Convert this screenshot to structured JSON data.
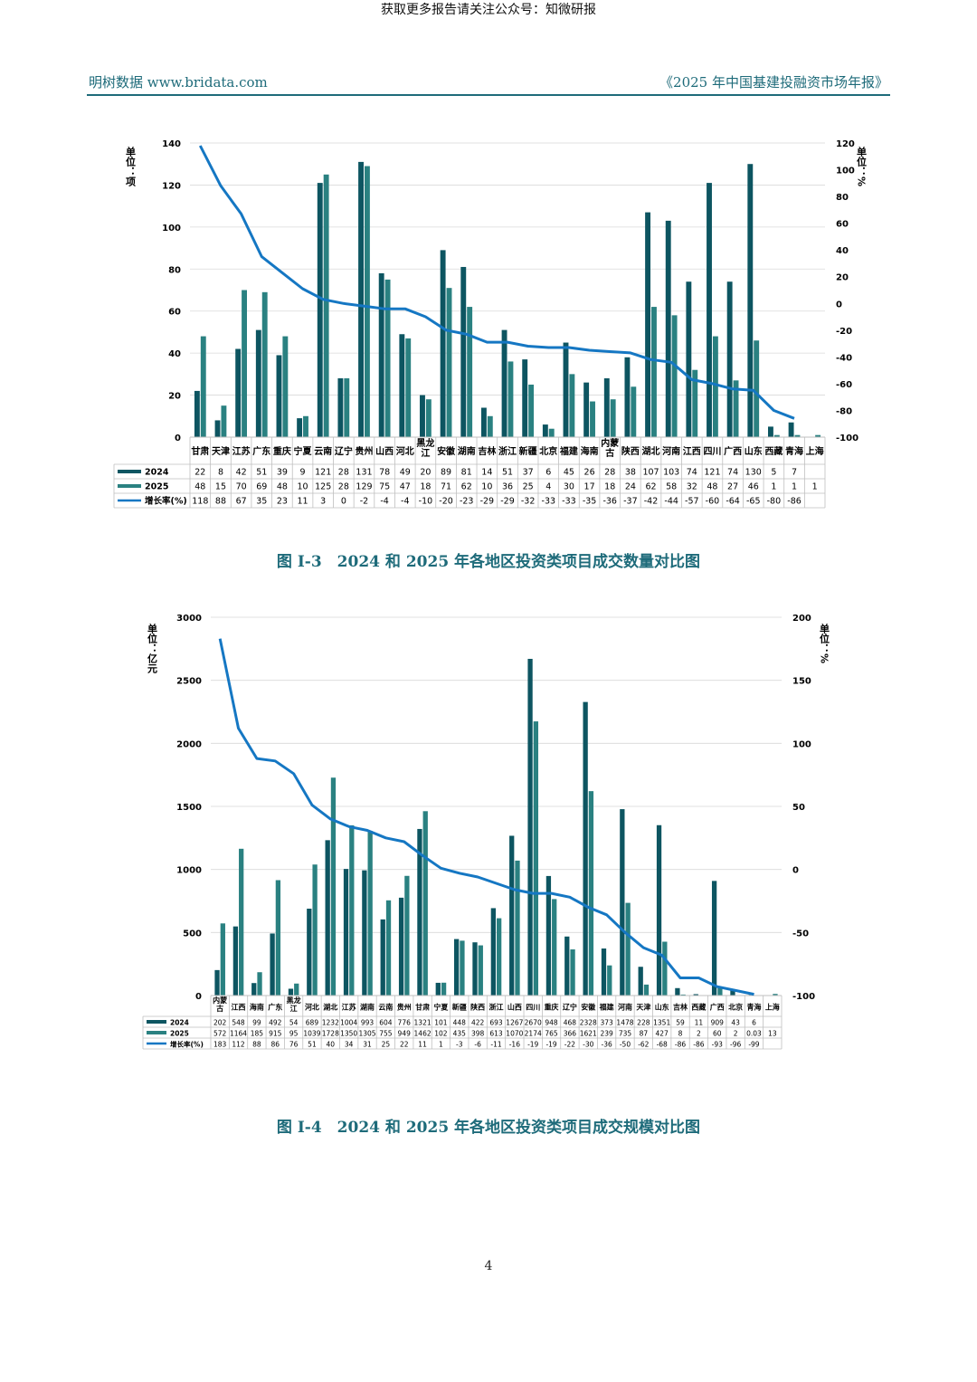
{
  "header": {
    "banner": "获取更多报告请关注公众号：知微研报",
    "left": "明树数据 www.bridata.com",
    "right": "《2025 年中国基建投融资市场年报》"
  },
  "colors": {
    "y2024": "#0d5561",
    "y2025": "#2a8181",
    "growth": "#1577c3",
    "text": "#1e6b7a"
  },
  "chart_data": [
    {
      "type": "bar",
      "title": "",
      "ylabel": "单位：项",
      "y2label": "单位：%",
      "ylim": [
        0,
        140
      ],
      "y2lim": [
        -100,
        120
      ],
      "legend_labels": [
        "2024",
        "2025",
        "增长率(%)"
      ],
      "categories": [
        "甘肃",
        "天津",
        "江苏",
        "广东",
        "重庆",
        "宁夏",
        "云南",
        "辽宁",
        "贵州",
        "山西",
        "河北",
        "黑龙江",
        "安徽",
        "湖南",
        "吉林",
        "浙江",
        "新疆",
        "北京",
        "福建",
        "海南",
        "内蒙古",
        "陕西",
        "湖北",
        "河南",
        "江西",
        "四川",
        "广西",
        "山东",
        "西藏",
        "青海",
        "上海"
      ],
      "series": [
        {
          "name": "2024",
          "values": [
            22,
            8,
            42,
            51,
            39,
            9,
            121,
            28,
            131,
            78,
            49,
            20,
            89,
            81,
            14,
            51,
            37,
            6,
            45,
            26,
            28,
            38,
            107,
            103,
            74,
            121,
            74,
            130,
            5,
            7,
            ""
          ]
        },
        {
          "name": "2025",
          "values": [
            48,
            15,
            70,
            69,
            48,
            10,
            125,
            28,
            129,
            75,
            47,
            18,
            71,
            62,
            10,
            36,
            25,
            4,
            30,
            17,
            18,
            24,
            62,
            58,
            32,
            48,
            27,
            46,
            1,
            1,
            1
          ]
        },
        {
          "name": "增长率(%)",
          "values": [
            118,
            88,
            67,
            35,
            23,
            11,
            3,
            0,
            -2,
            -4,
            -4,
            -10,
            -20,
            -23,
            -29,
            -29,
            -32,
            -33,
            -33,
            -35,
            -36,
            -37,
            -42,
            -44,
            -57,
            -60,
            -64,
            -65,
            -80,
            -86,
            ""
          ]
        }
      ],
      "caption": "图 I-3　2024 和 2025 年各地区投资类项目成交数量对比图"
    },
    {
      "type": "bar",
      "title": "",
      "ylabel": "单位：亿元",
      "y2label": "单位：%",
      "ylim": [
        0,
        3000
      ],
      "y2lim": [
        -100,
        200
      ],
      "legend_labels": [
        "2024",
        "2025",
        "增长率(%)"
      ],
      "categories": [
        "内蒙古",
        "江西",
        "海南",
        "广东",
        "黑龙江",
        "河北",
        "湖北",
        "江苏",
        "湖南",
        "云南",
        "贵州",
        "甘肃",
        "宁夏",
        "新疆",
        "陕西",
        "浙江",
        "山西",
        "四川",
        "重庆",
        "辽宁",
        "安徽",
        "福建",
        "河南",
        "天津",
        "山东",
        "吉林",
        "西藏",
        "广西",
        "北京",
        "青海",
        "上海"
      ],
      "series": [
        {
          "name": "2024",
          "values": [
            202,
            548,
            99,
            492,
            54,
            689,
            1232,
            1004,
            993,
            604,
            776,
            1321,
            101,
            448,
            422,
            693,
            1267,
            2670,
            948,
            468,
            2328,
            373,
            1478,
            228,
            1351,
            59,
            11,
            909,
            43,
            6,
            ""
          ]
        },
        {
          "name": "2025",
          "values": [
            572,
            1164,
            185,
            915,
            95,
            1039,
            1728,
            1350,
            1305,
            755,
            949,
            1462,
            102,
            435,
            398,
            613,
            1070,
            2174,
            765,
            366,
            1621,
            239,
            735,
            87,
            427,
            8,
            2,
            60,
            2,
            "0.03",
            13
          ]
        },
        {
          "name": "增长率(%)",
          "values": [
            183,
            112,
            88,
            86,
            76,
            51,
            40,
            34,
            31,
            25,
            22,
            11,
            1,
            -3,
            -6,
            -11,
            -16,
            -19,
            -19,
            -22,
            -30,
            -36,
            -50,
            -62,
            -68,
            -86,
            -86,
            -93,
            -96,
            -99,
            ""
          ]
        }
      ],
      "caption": "图 I-4　2024 和 2025 年各地区投资类项目成交规模对比图"
    }
  ],
  "page_number": "4"
}
